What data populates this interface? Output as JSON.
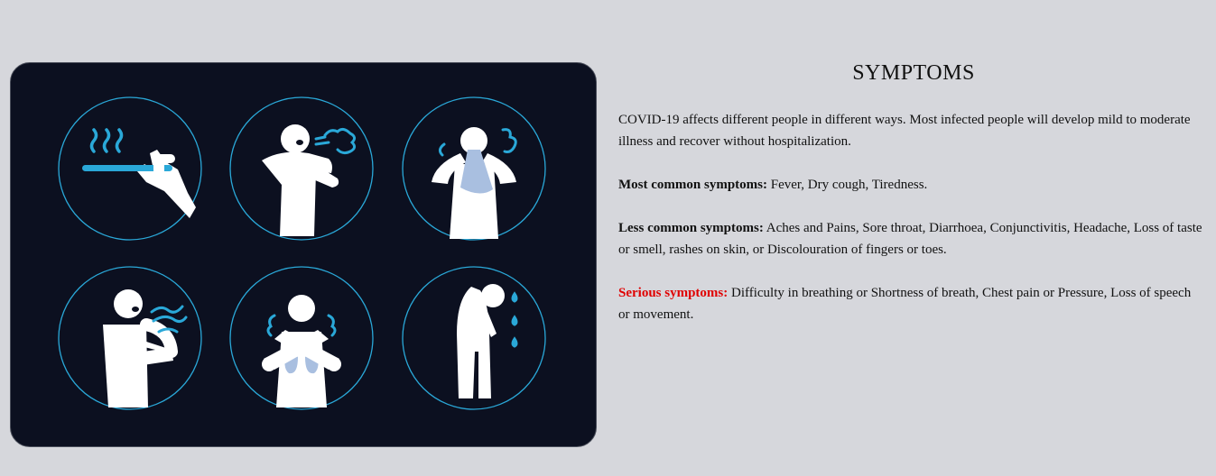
{
  "section": {
    "title": "SYMPTOMS",
    "intro": "COVID-19 affects different people in different ways. Most infected people will develop mild to moderate illness and recover without hospitalization.",
    "common": {
      "label": "Most common symptoms:",
      "text": " Fever, Dry cough, Tiredness."
    },
    "less_common": {
      "label": "Less common symptoms:",
      "text": " Aches and Pains, Sore throat, Diarrhoea, Conjunctivitis, Headache, Loss of taste or smell, rashes on skin, or Discolouration of fingers or toes."
    },
    "serious": {
      "label": "Serious symptoms:",
      "text": " Difficulty in breathing or Shortness of breath, Chest pain or Pressure, Loss of speech or movement."
    }
  },
  "colors": {
    "page_bg": "#d6d7dc",
    "panel_bg": "#0c1020",
    "circle_stroke": "#2aa8d8",
    "accent_blue": "#2aa8d8",
    "tissue_blue": "#a9bfe0",
    "serious_red": "#e00000"
  },
  "illustration": {
    "icons": [
      "fever-icon",
      "cough-icon",
      "sneeze-icon",
      "shortness-of-breath-icon",
      "chest-pain-icon",
      "dizziness-icon"
    ]
  }
}
